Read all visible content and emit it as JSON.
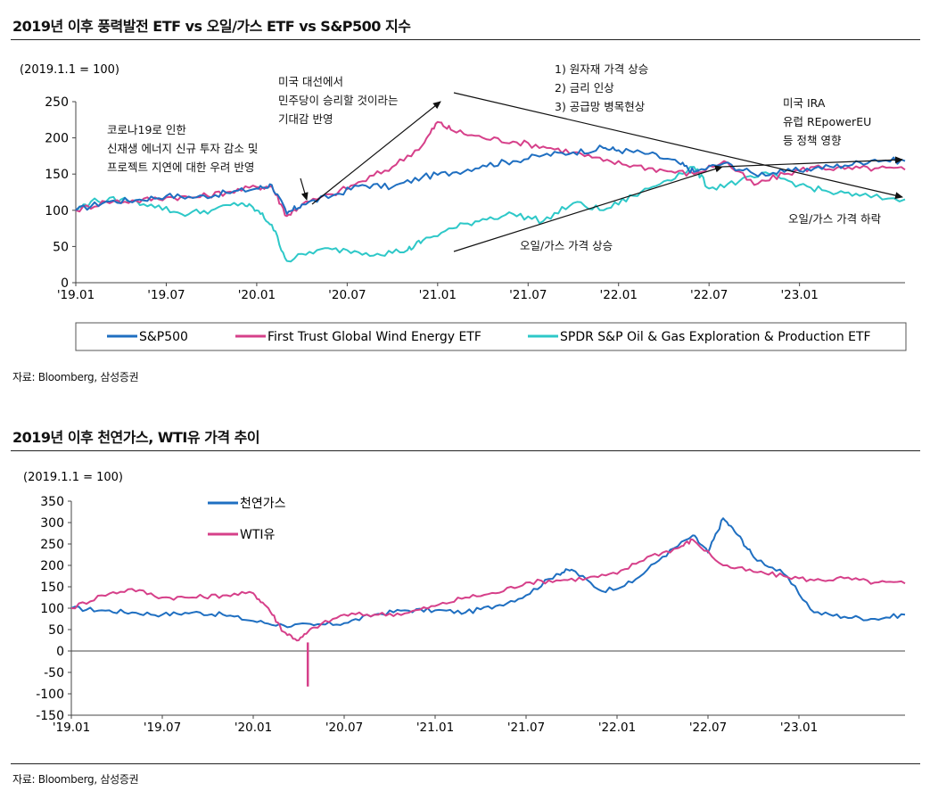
{
  "chart1": {
    "title": "2019년 이후 풍력발전 ETF vs 오일/가스 ETF vs S&P500 지수",
    "source": "자료: Bloomberg, 삼성증권",
    "chart_data": {
      "type": "line",
      "index_note": "(2019.1.1 = 100)",
      "x_ticks": [
        "'19.01",
        "'19.07",
        "'20.01",
        "'20.07",
        "'21.01",
        "'21.07",
        "'22.01",
        "'22.07",
        "'23.01"
      ],
      "x_range": [
        "2019-01",
        "2023-08"
      ],
      "ylim": [
        0,
        250
      ],
      "y_ticks": [
        0,
        50,
        100,
        150,
        200,
        250
      ],
      "legend_position": "bottom",
      "series": [
        {
          "name": "S&P500",
          "color": "#1f6fc1",
          "points": [
            [
              "2019-01",
              100
            ],
            [
              "2019-03",
              112
            ],
            [
              "2019-05",
              114
            ],
            [
              "2019-07",
              120
            ],
            [
              "2019-09",
              118
            ],
            [
              "2019-11",
              124
            ],
            [
              "2020-01",
              130
            ],
            [
              "2020-02",
              135
            ],
            [
              "2020-03",
              95
            ],
            [
              "2020-04",
              108
            ],
            [
              "2020-06",
              120
            ],
            [
              "2020-08",
              135
            ],
            [
              "2020-10",
              132
            ],
            [
              "2020-12",
              146
            ],
            [
              "2021-02",
              152
            ],
            [
              "2021-04",
              162
            ],
            [
              "2021-06",
              168
            ],
            [
              "2021-08",
              176
            ],
            [
              "2021-10",
              180
            ],
            [
              "2021-12",
              186
            ],
            [
              "2022-01",
              183
            ],
            [
              "2022-03",
              178
            ],
            [
              "2022-05",
              165
            ],
            [
              "2022-06",
              153
            ],
            [
              "2022-08",
              165
            ],
            [
              "2022-10",
              150
            ],
            [
              "2022-12",
              153
            ],
            [
              "2023-02",
              158
            ],
            [
              "2023-04",
              162
            ],
            [
              "2023-06",
              170
            ],
            [
              "2023-08",
              168
            ]
          ]
        },
        {
          "name": "First Trust Global Wind Energy ETF",
          "color": "#d6408a",
          "points": [
            [
              "2019-01",
              100
            ],
            [
              "2019-03",
              112
            ],
            [
              "2019-05",
              113
            ],
            [
              "2019-07",
              118
            ],
            [
              "2019-09",
              118
            ],
            [
              "2019-11",
              125
            ],
            [
              "2020-01",
              132
            ],
            [
              "2020-02",
              133
            ],
            [
              "2020-03",
              92
            ],
            [
              "2020-04",
              108
            ],
            [
              "2020-06",
              122
            ],
            [
              "2020-08",
              140
            ],
            [
              "2020-10",
              160
            ],
            [
              "2020-12",
              190
            ],
            [
              "2021-01",
              222
            ],
            [
              "2021-02",
              210
            ],
            [
              "2021-04",
              200
            ],
            [
              "2021-06",
              195
            ],
            [
              "2021-08",
              188
            ],
            [
              "2021-10",
              180
            ],
            [
              "2021-12",
              168
            ],
            [
              "2022-02",
              162
            ],
            [
              "2022-04",
              155
            ],
            [
              "2022-06",
              150
            ],
            [
              "2022-08",
              168
            ],
            [
              "2022-10",
              135
            ],
            [
              "2022-12",
              150
            ],
            [
              "2023-02",
              160
            ],
            [
              "2023-04",
              157
            ],
            [
              "2023-06",
              158
            ],
            [
              "2023-08",
              156
            ]
          ]
        },
        {
          "name": "SPDR S&P Oil & Gas Exploration & Production ETF",
          "color": "#2ec8c8",
          "points": [
            [
              "2019-01",
              100
            ],
            [
              "2019-02",
              112
            ],
            [
              "2019-04",
              115
            ],
            [
              "2019-06",
              108
            ],
            [
              "2019-08",
              95
            ],
            [
              "2019-10",
              100
            ],
            [
              "2019-12",
              110
            ],
            [
              "2020-01",
              100
            ],
            [
              "2020-02",
              80
            ],
            [
              "2020-03",
              30
            ],
            [
              "2020-05",
              45
            ],
            [
              "2020-07",
              45
            ],
            [
              "2020-09",
              40
            ],
            [
              "2020-11",
              45
            ],
            [
              "2020-12",
              58
            ],
            [
              "2021-02",
              75
            ],
            [
              "2021-04",
              88
            ],
            [
              "2021-06",
              95
            ],
            [
              "2021-08",
              85
            ],
            [
              "2021-10",
              110
            ],
            [
              "2021-12",
              100
            ],
            [
              "2022-02",
              120
            ],
            [
              "2022-04",
              140
            ],
            [
              "2022-06",
              160
            ],
            [
              "2022-07",
              130
            ],
            [
              "2022-09",
              140
            ],
            [
              "2022-11",
              150
            ],
            [
              "2023-01",
              135
            ],
            [
              "2023-03",
              125
            ],
            [
              "2023-05",
              120
            ],
            [
              "2023-08",
              115
            ]
          ]
        }
      ],
      "annotations": [
        "코로나19로 인한",
        "신재생 에너지 신규 투자 감소 및",
        "프로젝트 지연에 대한 우려 반영",
        "미국 대선에서",
        "민주당이 승리할 것이라는",
        "기대감 반영",
        "1) 원자재 가격 상승",
        "2) 금리 인상",
        "3) 공급망 병목현상",
        "미국 IRA",
        "유럽 REpowerEU",
        "등 정책 영향",
        "오일/가스 가격 상승",
        "오일/가스 가격 하락"
      ]
    }
  },
  "chart2": {
    "title": "2019년 이후 천연가스, WTI유 가격 추이",
    "source": "자료: Bloomberg, 삼성증권",
    "chart_data": {
      "type": "line",
      "index_note": "(2019.1.1 = 100)",
      "x_ticks": [
        "'19.01",
        "'19.07",
        "'20.01",
        "'20.07",
        "'21.01",
        "'21.07",
        "'22.01",
        "'22.07",
        "'23.01"
      ],
      "x_range": [
        "2019-01",
        "2023-08"
      ],
      "ylim": [
        -150,
        350
      ],
      "y_ticks": [
        -150,
        -100,
        -50,
        0,
        50,
        100,
        150,
        200,
        250,
        300,
        350
      ],
      "legend_position": "top-left",
      "series": [
        {
          "name": "천연가스",
          "color": "#1f6fc1",
          "points": [
            [
              "2019-01",
              100
            ],
            [
              "2019-03",
              95
            ],
            [
              "2019-05",
              90
            ],
            [
              "2019-07",
              85
            ],
            [
              "2019-09",
              90
            ],
            [
              "2019-11",
              85
            ],
            [
              "2020-01",
              70
            ],
            [
              "2020-03",
              60
            ],
            [
              "2020-05",
              60
            ],
            [
              "2020-07",
              65
            ],
            [
              "2020-09",
              85
            ],
            [
              "2020-11",
              95
            ],
            [
              "2021-01",
              95
            ],
            [
              "2021-03",
              90
            ],
            [
              "2021-05",
              105
            ],
            [
              "2021-07",
              130
            ],
            [
              "2021-09",
              180
            ],
            [
              "2021-10",
              190
            ],
            [
              "2021-12",
              140
            ],
            [
              "2022-02",
              160
            ],
            [
              "2022-04",
              220
            ],
            [
              "2022-06",
              270
            ],
            [
              "2022-07",
              230
            ],
            [
              "2022-08",
              310
            ],
            [
              "2022-09",
              270
            ],
            [
              "2022-10",
              220
            ],
            [
              "2022-12",
              180
            ],
            [
              "2023-02",
              90
            ],
            [
              "2023-04",
              80
            ],
            [
              "2023-06",
              75
            ],
            [
              "2023-08",
              85
            ]
          ]
        },
        {
          "name": "WTI유",
          "color": "#d6408a",
          "points": [
            [
              "2019-01",
              100
            ],
            [
              "2019-03",
              130
            ],
            [
              "2019-05",
              145
            ],
            [
              "2019-07",
              125
            ],
            [
              "2019-09",
              125
            ],
            [
              "2019-11",
              130
            ],
            [
              "2020-01",
              135
            ],
            [
              "2020-02",
              100
            ],
            [
              "2020-03",
              45
            ],
            [
              "2020-04",
              25
            ],
            [
              "2020-05",
              55
            ],
            [
              "2020-07",
              85
            ],
            [
              "2020-09",
              85
            ],
            [
              "2020-11",
              88
            ],
            [
              "2021-01",
              105
            ],
            [
              "2021-03",
              125
            ],
            [
              "2021-05",
              135
            ],
            [
              "2021-07",
              160
            ],
            [
              "2021-09",
              165
            ],
            [
              "2021-11",
              170
            ],
            [
              "2022-01",
              180
            ],
            [
              "2022-03",
              220
            ],
            [
              "2022-05",
              240
            ],
            [
              "2022-06",
              260
            ],
            [
              "2022-08",
              200
            ],
            [
              "2022-10",
              185
            ],
            [
              "2022-12",
              175
            ],
            [
              "2023-02",
              165
            ],
            [
              "2023-04",
              170
            ],
            [
              "2023-06",
              160
            ],
            [
              "2023-08",
              158
            ]
          ]
        }
      ],
      "spike": {
        "date": "2020-04",
        "min": -83
      }
    }
  }
}
